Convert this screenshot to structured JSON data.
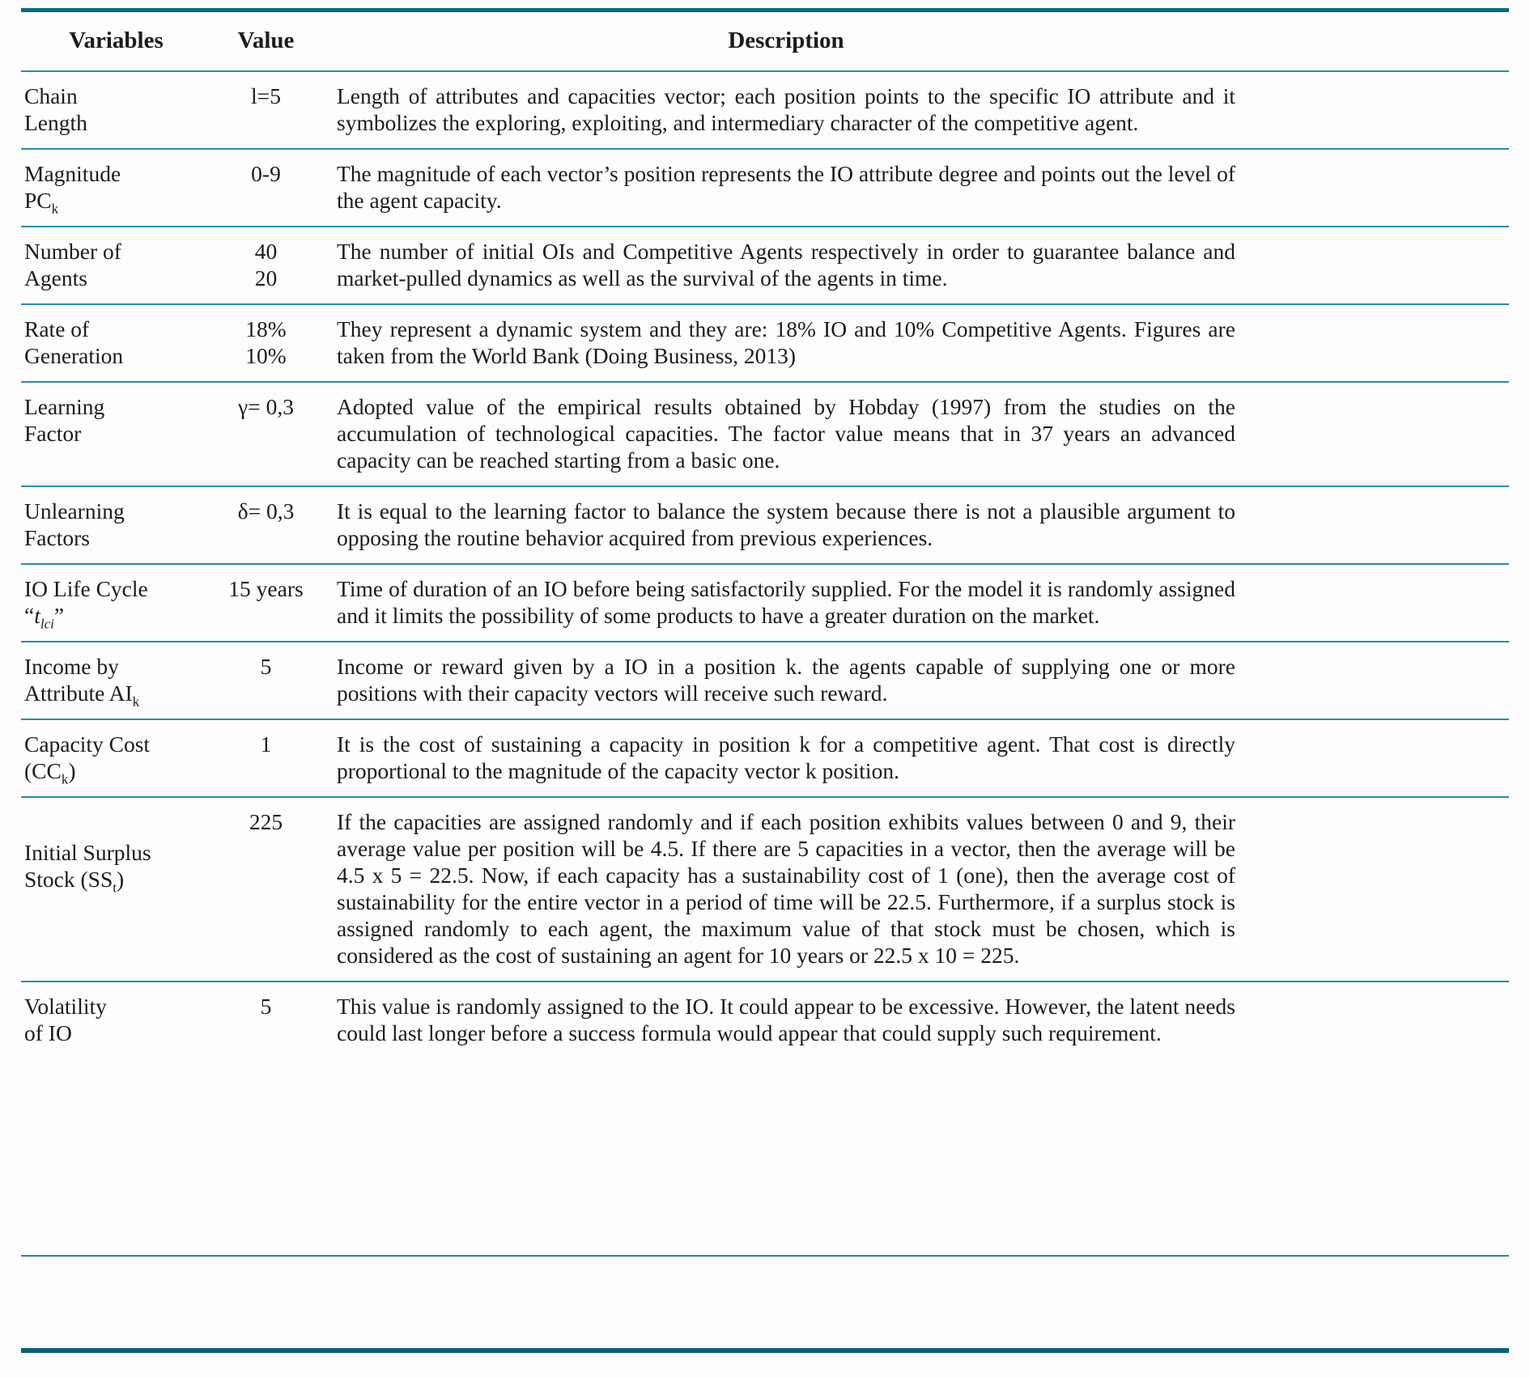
{
  "colors": {
    "frame_rule": "#0a6b85",
    "row_rule": "#2b89a8",
    "text": "#1c1c1c",
    "background": "#fdfdfd"
  },
  "table": {
    "headers": {
      "variables": "Variables",
      "value": "Value",
      "description": "Description"
    },
    "rows": [
      {
        "var_prefix": "Chain\nLength",
        "value": "l=5",
        "description": "Length of attributes and capacities vector; each position points to the specific IO attribute and it symbolizes the exploring, exploiting, and intermediary character of the competitive agent."
      },
      {
        "var_prefix": "Magnitude\nPC",
        "var_sub": "k",
        "value": "0-9",
        "description": "The magnitude of each vector’s position represents the IO attribute degree and points out the level of the agent capacity."
      },
      {
        "var_prefix": "Number of\nAgents",
        "value": "40\n20",
        "description": "The number of initial OIs and Competitive Agents respectively in order to guarantee balance and market-pulled dynamics as well as the survival of the agents in time."
      },
      {
        "var_prefix": "Rate of\nGeneration",
        "value": "18%\n10%",
        "description": "They represent a dynamic system and they are: 18% IO and 10% Competitive Agents. Figures are taken from the World Bank (Doing Business, 2013)"
      },
      {
        "var_prefix": "Learning\nFactor",
        "value": "γ= 0,3",
        "description": "Adopted value of the empirical results obtained by Hobday (1997) from the studies on the accumulation of technological capacities. The factor value means that in 37 years an advanced capacity can be reached starting from a basic one."
      },
      {
        "var_prefix": "Unlearning\nFactors",
        "value": "δ= 0,3",
        "description": "It is equal to the learning factor to balance the system because there is not a plausible argument to opposing the routine behavior acquired from previous experiences."
      },
      {
        "var_prefix": "IO Life Cycle\n“",
        "var_italic": "t",
        "var_sub": "lci",
        "var_suffix": "”",
        "value": "15 years",
        "description": "Time of duration of an IO before being satisfactorily supplied. For the model it is randomly assigned and it limits the possibility of some products to have a greater duration on the market."
      },
      {
        "var_prefix": "Income by\nAttribute AI",
        "var_sub": "k",
        "value": "5",
        "description": "Income or reward given by a IO in a position k. the agents capable of supplying one or more positions with their capacity vectors will receive such reward."
      },
      {
        "var_prefix": "Capacity Cost\n(CC",
        "var_sub": "k",
        "var_suffix": ")",
        "value": "1",
        "description": "It is the cost of sustaining a capacity in position k for a competitive agent. That cost is directly proportional to the magnitude of the capacity vector k position."
      },
      {
        "var_prefix": "Initial Surplus\nStock (SS",
        "var_sub": "t",
        "var_suffix": ")",
        "value": "225",
        "description": "If the capacities are assigned randomly and if each position exhibits values between 0 and 9, their average value per position will be 4.5. If there are 5 capacities in a vector, then the average will be 4.5 x 5 = 22.5. Now, if each capacity has a sustainability cost of 1 (one), then the average cost of sustainability for the entire vector in a period of time will be 22.5. Furthermore, if a surplus stock is assigned randomly to each agent, the maximum value of that stock must be chosen, which is considered as the cost of sustaining an agent for 10 years or 22.5 x 10 = 225."
      },
      {
        "var_prefix": "Volatility\nof IO",
        "value": "5",
        "description": "This value is randomly assigned to the IO. It could appear to be excessive. However, the latent needs could last longer before a success formula would appear that could supply such requirement."
      }
    ]
  }
}
